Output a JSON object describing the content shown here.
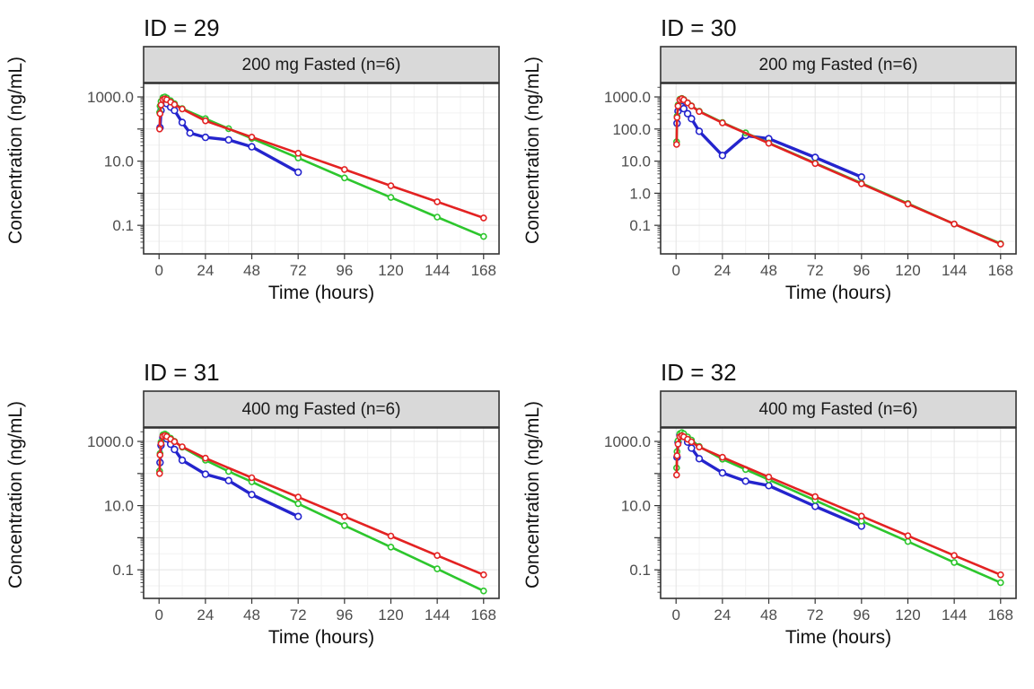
{
  "labels": {
    "y": "Concentration (ng/mL)",
    "x": "Time (hours)"
  },
  "axis": {
    "x_ticks": [
      0,
      24,
      48,
      72,
      96,
      120,
      144,
      168
    ],
    "x_domain": [
      -8,
      176
    ],
    "y_domain_log10": [
      -1.89,
      3.42
    ]
  },
  "colors": {
    "blue": "#2424cd",
    "green": "#2dc62d",
    "red": "#e32222",
    "strip_bg": "#d9d9d9",
    "panel_border": "#333333",
    "grid_major": "#e3e3e3",
    "grid_minor": "#f2f2f2",
    "tick_text": "#4d4d4d",
    "tick_mark": "#333333"
  },
  "chart_data": [
    {
      "type": "line",
      "title": "ID = 29",
      "facet": "200 mg Fasted (n=6)",
      "xlabel": "Time (hours)",
      "ylabel": "Concentration (ng/mL)",
      "y_scale": "log10",
      "ylim": [
        0.013,
        2600
      ],
      "y_ticks": {
        "values": [
          0.1,
          10,
          1000
        ],
        "labels": [
          "0.1",
          "10.0",
          "1000.0"
        ]
      },
      "series": [
        {
          "name": "blue",
          "color_key": "blue",
          "points": [
            [
              0.5,
              110
            ],
            [
              1,
              380
            ],
            [
              2,
              650
            ],
            [
              3,
              700
            ],
            [
              4,
              620
            ],
            [
              6,
              480
            ],
            [
              8,
              380
            ],
            [
              12,
              160
            ],
            [
              16,
              75
            ],
            [
              24,
              55
            ],
            [
              36,
              46
            ],
            [
              48,
              28
            ],
            [
              72,
              4.5
            ]
          ]
        },
        {
          "name": "green",
          "color_key": "green",
          "points": [
            [
              0.25,
              330
            ],
            [
              0.5,
              520
            ],
            [
              1,
              720
            ],
            [
              2,
              950
            ],
            [
              3,
              1000
            ],
            [
              4,
              930
            ],
            [
              6,
              760
            ],
            [
              8,
              620
            ],
            [
              12,
              430
            ],
            [
              24,
              210
            ],
            [
              36,
              103
            ],
            [
              48,
              51
            ],
            [
              72,
              12.5
            ],
            [
              96,
              3.0
            ],
            [
              120,
              0.74
            ],
            [
              144,
              0.18
            ],
            [
              168,
              0.045
            ]
          ]
        },
        {
          "name": "red",
          "color_key": "red",
          "points": [
            [
              0.25,
              100
            ],
            [
              0.5,
              300
            ],
            [
              1,
              560
            ],
            [
              2,
              820
            ],
            [
              3,
              870
            ],
            [
              4,
              820
            ],
            [
              6,
              690
            ],
            [
              8,
              580
            ],
            [
              12,
              420
            ],
            [
              24,
              180
            ],
            [
              48,
              56
            ],
            [
              72,
              17.6
            ],
            [
              96,
              5.5
            ],
            [
              120,
              1.7
            ],
            [
              144,
              0.54
            ],
            [
              168,
              0.17
            ]
          ]
        }
      ]
    },
    {
      "type": "line",
      "title": "ID = 30",
      "facet": "200 mg Fasted (n=6)",
      "xlabel": "Time (hours)",
      "ylabel": "Concentration (ng/mL)",
      "y_scale": "log10",
      "ylim": [
        0.013,
        2600
      ],
      "y_ticks": {
        "values": [
          0.1,
          1,
          10,
          100,
          1000
        ],
        "labels": [
          "0.1",
          "1.0",
          "10.0",
          "100.0",
          "1000.0"
        ]
      },
      "series": [
        {
          "name": "blue",
          "color_key": "blue",
          "points": [
            [
              0.5,
              150
            ],
            [
              1,
              360
            ],
            [
              2,
              480
            ],
            [
              3,
              500
            ],
            [
              4,
              430
            ],
            [
              6,
              300
            ],
            [
              8,
              210
            ],
            [
              12,
              85
            ],
            [
              24,
              15
            ],
            [
              36,
              62
            ],
            [
              48,
              50
            ],
            [
              72,
              13
            ],
            [
              96,
              3.2
            ]
          ]
        },
        {
          "name": "green",
          "color_key": "green",
          "points": [
            [
              0.25,
              40
            ],
            [
              0.5,
              250
            ],
            [
              1,
              560
            ],
            [
              2,
              850
            ],
            [
              3,
              900
            ],
            [
              4,
              830
            ],
            [
              6,
              660
            ],
            [
              8,
              530
            ],
            [
              12,
              360
            ],
            [
              24,
              160
            ],
            [
              36,
              76
            ],
            [
              48,
              37
            ],
            [
              72,
              8.7
            ],
            [
              96,
              2.05
            ],
            [
              120,
              0.48
            ],
            [
              144,
              0.11
            ],
            [
              168,
              0.027
            ]
          ]
        },
        {
          "name": "red",
          "color_key": "red",
          "points": [
            [
              0.25,
              33
            ],
            [
              0.5,
              230
            ],
            [
              1,
              520
            ],
            [
              2,
              810
            ],
            [
              3,
              880
            ],
            [
              4,
              810
            ],
            [
              6,
              650
            ],
            [
              8,
              520
            ],
            [
              12,
              350
            ],
            [
              24,
              155
            ],
            [
              48,
              36
            ],
            [
              72,
              8.4
            ],
            [
              96,
              1.98
            ],
            [
              120,
              0.46
            ],
            [
              144,
              0.11
            ],
            [
              168,
              0.026
            ]
          ]
        }
      ]
    },
    {
      "type": "line",
      "title": "ID = 31",
      "facet": "400 mg Fasted (n=6)",
      "xlabel": "Time (hours)",
      "ylabel": "Concentration (ng/mL)",
      "y_scale": "log10",
      "ylim": [
        0.013,
        2600
      ],
      "y_ticks": {
        "values": [
          0.1,
          10,
          1000
        ],
        "labels": [
          "0.1",
          "10.0",
          "1000.0"
        ]
      },
      "series": [
        {
          "name": "blue",
          "color_key": "blue",
          "points": [
            [
              0.5,
              220
            ],
            [
              1,
              750
            ],
            [
              2,
              1300
            ],
            [
              3,
              1400
            ],
            [
              4,
              1200
            ],
            [
              6,
              820
            ],
            [
              8,
              560
            ],
            [
              12,
              260
            ],
            [
              24,
              95
            ],
            [
              36,
              60
            ],
            [
              48,
              22
            ],
            [
              72,
              4.6
            ]
          ]
        },
        {
          "name": "green",
          "color_key": "green",
          "points": [
            [
              0.25,
              120
            ],
            [
              0.5,
              420
            ],
            [
              1,
              950
            ],
            [
              2,
              1600
            ],
            [
              3,
              1700
            ],
            [
              4,
              1560
            ],
            [
              6,
              1260
            ],
            [
              8,
              1010
            ],
            [
              12,
              660
            ],
            [
              24,
              260
            ],
            [
              36,
              117
            ],
            [
              48,
              55
            ],
            [
              72,
              11.5
            ],
            [
              96,
              2.4
            ],
            [
              120,
              0.51
            ],
            [
              144,
              0.107
            ],
            [
              168,
              0.022
            ]
          ]
        },
        {
          "name": "red",
          "color_key": "red",
          "points": [
            [
              0.25,
              100
            ],
            [
              0.5,
              380
            ],
            [
              1,
              850
            ],
            [
              2,
              1450
            ],
            [
              3,
              1520
            ],
            [
              4,
              1420
            ],
            [
              6,
              1180
            ],
            [
              8,
              980
            ],
            [
              12,
              680
            ],
            [
              24,
              300
            ],
            [
              48,
              74
            ],
            [
              72,
              18.4
            ],
            [
              96,
              4.6
            ],
            [
              120,
              1.13
            ],
            [
              144,
              0.28
            ],
            [
              168,
              0.07
            ]
          ]
        }
      ]
    },
    {
      "type": "line",
      "title": "ID = 32",
      "facet": "400 mg Fasted (n=6)",
      "xlabel": "Time (hours)",
      "ylabel": "Concentration (ng/mL)",
      "y_scale": "log10",
      "ylim": [
        0.013,
        2600
      ],
      "y_ticks": {
        "values": [
          0.1,
          10,
          1000
        ],
        "labels": [
          "0.1",
          "10.0",
          "1000.0"
        ]
      },
      "series": [
        {
          "name": "blue",
          "color_key": "blue",
          "points": [
            [
              0.5,
              320
            ],
            [
              1,
              950
            ],
            [
              2,
              1600
            ],
            [
              3,
              1700
            ],
            [
              4,
              1420
            ],
            [
              6,
              950
            ],
            [
              8,
              620
            ],
            [
              12,
              290
            ],
            [
              24,
              105
            ],
            [
              36,
              58
            ],
            [
              48,
              42
            ],
            [
              72,
              9.5
            ],
            [
              96,
              2.3
            ]
          ]
        },
        {
          "name": "green",
          "color_key": "green",
          "points": [
            [
              0.25,
              150
            ],
            [
              0.5,
              480
            ],
            [
              1,
              1050
            ],
            [
              2,
              1750
            ],
            [
              3,
              1880
            ],
            [
              4,
              1720
            ],
            [
              6,
              1380
            ],
            [
              8,
              1100
            ],
            [
              12,
              700
            ],
            [
              24,
              280
            ],
            [
              36,
              134
            ],
            [
              48,
              64
            ],
            [
              72,
              14.6
            ],
            [
              96,
              3.3
            ],
            [
              120,
              0.76
            ],
            [
              144,
              0.17
            ],
            [
              168,
              0.04
            ]
          ]
        },
        {
          "name": "red",
          "color_key": "red",
          "points": [
            [
              0.25,
              90
            ],
            [
              0.5,
              360
            ],
            [
              1,
              820
            ],
            [
              2,
              1400
            ],
            [
              3,
              1500
            ],
            [
              4,
              1400
            ],
            [
              6,
              1170
            ],
            [
              8,
              970
            ],
            [
              12,
              670
            ],
            [
              24,
              320
            ],
            [
              48,
              78
            ],
            [
              72,
              19
            ],
            [
              96,
              4.7
            ],
            [
              120,
              1.15
            ],
            [
              144,
              0.28
            ],
            [
              168,
              0.07
            ]
          ]
        }
      ]
    }
  ]
}
